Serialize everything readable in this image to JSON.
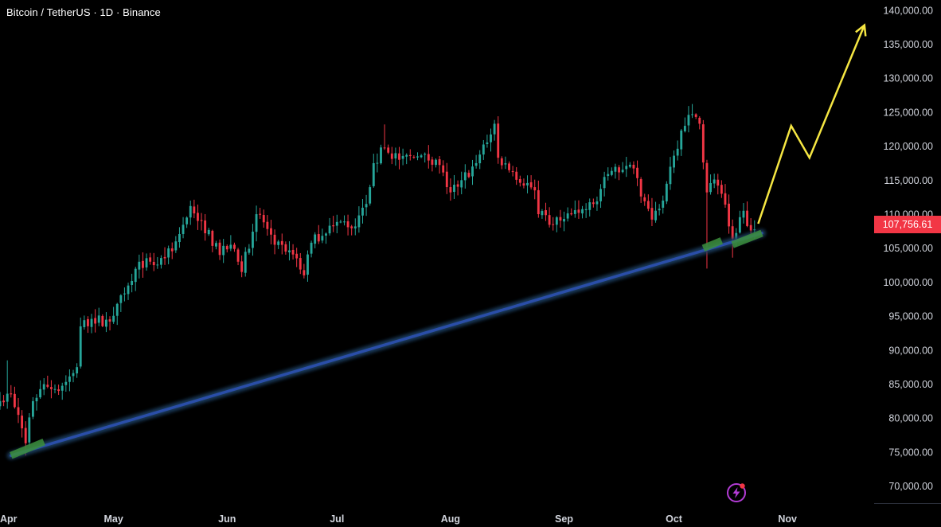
{
  "header": {
    "symbol_title": "Bitcoin / TetherUS · 1D · Binance"
  },
  "colors": {
    "background": "#000000",
    "up_candle": "#26a69a",
    "down_candle": "#f23645",
    "trendline": "#2a4ea8",
    "trend_glow": "#1c3f63",
    "touch_highlight": "#3c8f3c",
    "projection_arrow": "#f5e642",
    "axis_text": "#d1d4dc",
    "price_tag_bg": "#f23645"
  },
  "current_price_label": "107,756.61",
  "icons": {
    "bottom_right": "lightning-bolt-icon"
  },
  "chart_data": {
    "type": "candlestick",
    "title": "Bitcoin / TetherUS · 1D · Binance",
    "xlabel": "",
    "ylabel": "",
    "ylim": [
      67500,
      141500
    ],
    "xlim": [
      "2025-03-31",
      "2025-11-24"
    ],
    "grid": false,
    "y_axis_position": "right",
    "y_ticks": [
      "140,000.00",
      "135,000.00",
      "130,000.00",
      "125,000.00",
      "120,000.00",
      "115,000.00",
      "110,000.00",
      "105,000.00",
      "100,000.00",
      "95,000.00",
      "90,000.00",
      "85,000.00",
      "80,000.00",
      "75,000.00",
      "70,000.00"
    ],
    "y_tick_values": [
      140000,
      135000,
      130000,
      125000,
      120000,
      115000,
      110000,
      105000,
      100000,
      95000,
      90000,
      85000,
      80000,
      75000,
      70000
    ],
    "x_ticks": [
      "Apr",
      "May",
      "Jun",
      "Jul",
      "Aug",
      "Sep",
      "Oct",
      "Nov"
    ],
    "x_tick_dates": [
      "2025-03-31",
      "2025-05-01",
      "2025-06-01",
      "2025-07-01",
      "2025-08-01",
      "2025-09-01",
      "2025-10-01",
      "2025-11-01"
    ],
    "last_price": 107756.61,
    "close_keypoints": [
      [
        "2025-03-31",
        82500
      ],
      [
        "2025-04-03",
        83500
      ],
      [
        "2025-04-06",
        78500
      ],
      [
        "2025-04-07",
        76300
      ],
      [
        "2025-04-09",
        82500
      ],
      [
        "2025-04-12",
        85000
      ],
      [
        "2025-04-16",
        84000
      ],
      [
        "2025-04-21",
        87500
      ],
      [
        "2025-04-22",
        93500
      ],
      [
        "2025-04-25",
        94600
      ],
      [
        "2025-04-30",
        94200
      ],
      [
        "2025-05-02",
        96800
      ],
      [
        "2025-05-08",
        103000
      ],
      [
        "2025-05-12",
        102500
      ],
      [
        "2025-05-15",
        103500
      ],
      [
        "2025-05-18",
        106000
      ],
      [
        "2025-05-21",
        109500
      ],
      [
        "2025-05-22",
        111200
      ],
      [
        "2025-05-25",
        109000
      ],
      [
        "2025-05-30",
        104000
      ],
      [
        "2025-06-02",
        105500
      ],
      [
        "2025-06-05",
        101500
      ],
      [
        "2025-06-09",
        110000
      ],
      [
        "2025-06-11",
        108800
      ],
      [
        "2025-06-14",
        105500
      ],
      [
        "2025-06-17",
        104500
      ],
      [
        "2025-06-20",
        103500
      ],
      [
        "2025-06-22",
        101000
      ],
      [
        "2025-06-24",
        105800
      ],
      [
        "2025-06-29",
        108300
      ],
      [
        "2025-07-02",
        108900
      ],
      [
        "2025-07-06",
        108200
      ],
      [
        "2025-07-09",
        111500
      ],
      [
        "2025-07-11",
        117500
      ],
      [
        "2025-07-14",
        119800
      ],
      [
        "2025-07-18",
        118000
      ],
      [
        "2025-07-23",
        118500
      ],
      [
        "2025-07-28",
        118000
      ],
      [
        "2025-08-01",
        113200
      ],
      [
        "2025-08-04",
        115000
      ],
      [
        "2025-08-08",
        117500
      ],
      [
        "2025-08-13",
        123300
      ],
      [
        "2025-08-14",
        118300
      ],
      [
        "2025-08-18",
        116200
      ],
      [
        "2025-08-24",
        113500
      ],
      [
        "2025-08-25",
        110000
      ],
      [
        "2025-08-29",
        108500
      ],
      [
        "2025-09-01",
        109300
      ],
      [
        "2025-09-05",
        110200
      ],
      [
        "2025-09-09",
        111500
      ],
      [
        "2025-09-13",
        115900
      ],
      [
        "2025-09-18",
        117100
      ],
      [
        "2025-09-21",
        115300
      ],
      [
        "2025-09-22",
        112600
      ],
      [
        "2025-09-25",
        109200
      ],
      [
        "2025-09-28",
        112000
      ],
      [
        "2025-10-01",
        118600
      ],
      [
        "2025-10-03",
        122300
      ],
      [
        "2025-10-06",
        124700
      ],
      [
        "2025-10-08",
        123300
      ],
      [
        "2025-10-10",
        113200
      ],
      [
        "2025-10-12",
        115100
      ],
      [
        "2025-10-14",
        113000
      ],
      [
        "2025-10-16",
        108200
      ],
      [
        "2025-10-17",
        106400
      ],
      [
        "2025-10-20",
        110500
      ],
      [
        "2025-10-22",
        107600
      ],
      [
        "2025-10-23",
        107756.61
      ]
    ],
    "lows_marked": [
      [
        "2025-04-07",
        74500
      ],
      [
        "2025-10-10",
        102000
      ],
      [
        "2025-10-17",
        103600
      ]
    ],
    "highs_marked": [
      [
        "2025-04-02",
        88500
      ],
      [
        "2025-05-22",
        112000
      ],
      [
        "2025-07-14",
        123200
      ],
      [
        "2025-08-14",
        124400
      ],
      [
        "2025-10-06",
        126200
      ]
    ],
    "annotations": [
      {
        "type": "trendline",
        "from": [
          "2025-04-03",
          74500
        ],
        "to": [
          "2025-10-25",
          107200
        ]
      },
      {
        "type": "touch_highlight",
        "from": [
          "2025-04-03",
          74500
        ],
        "to": [
          "2025-04-12",
          76500
        ]
      },
      {
        "type": "touch_highlight",
        "from": [
          "2025-10-09",
          105000
        ],
        "to": [
          "2025-10-14",
          106100
        ]
      },
      {
        "type": "touch_highlight",
        "from": [
          "2025-10-17",
          105500
        ],
        "to": [
          "2025-10-25",
          107200
        ]
      },
      {
        "type": "projection_arrow",
        "points": [
          [
            "2025-10-24",
            108600
          ],
          [
            "2025-11-02",
            123000
          ],
          [
            "2025-11-07",
            118300
          ],
          [
            "2025-11-22",
            137800
          ]
        ]
      }
    ]
  }
}
